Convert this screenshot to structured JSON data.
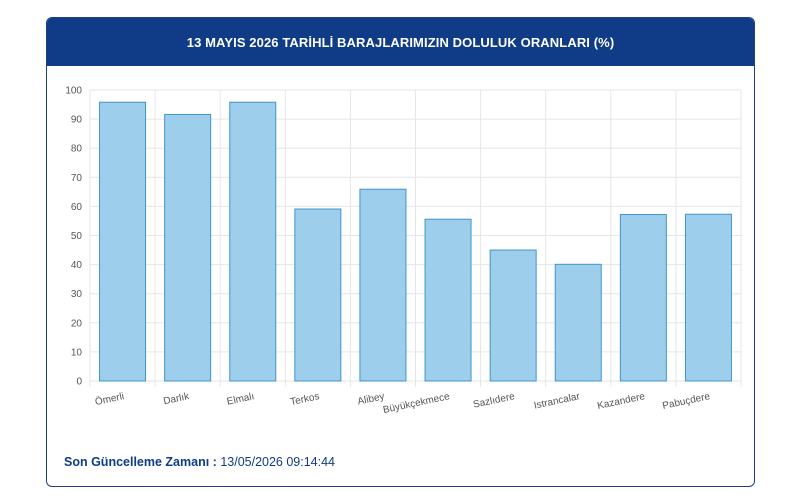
{
  "header": {
    "title": "13 MAYIS 2026 TARİHLİ BARAJLARIMIZIN DOLULUK ORANLARI (%)"
  },
  "footer": {
    "label": "Son Güncelleme Zamanı :",
    "value": "13/05/2026 09:14:44"
  },
  "colors": {
    "bar_fill": "#9dcfec",
    "bar_stroke": "#3e95cd",
    "header_bg": "#0f3b87",
    "grid": "#e6e6e6"
  },
  "chart_data": {
    "type": "bar",
    "title": "13 MAYIS 2026 TARİHLİ BARAJLARIMIZIN DOLULUK ORANLARI (%)",
    "categories": [
      "Ömerli",
      "Darlık",
      "Elmalı",
      "Terkos",
      "Alibey",
      "Büyükçekmece",
      "Sazlıdere",
      "Istrancalar",
      "Kazandere",
      "Pabuçdere"
    ],
    "values": [
      95.8,
      91.6,
      95.8,
      59.1,
      65.9,
      55.6,
      45.0,
      40.1,
      57.2,
      57.3
    ],
    "yticks": [
      "0",
      "10",
      "20",
      "30",
      "40",
      "50",
      "60",
      "70",
      "80",
      "90",
      "100"
    ],
    "ylim": [
      0,
      100
    ],
    "grid": true,
    "xlabel": "",
    "ylabel": ""
  }
}
